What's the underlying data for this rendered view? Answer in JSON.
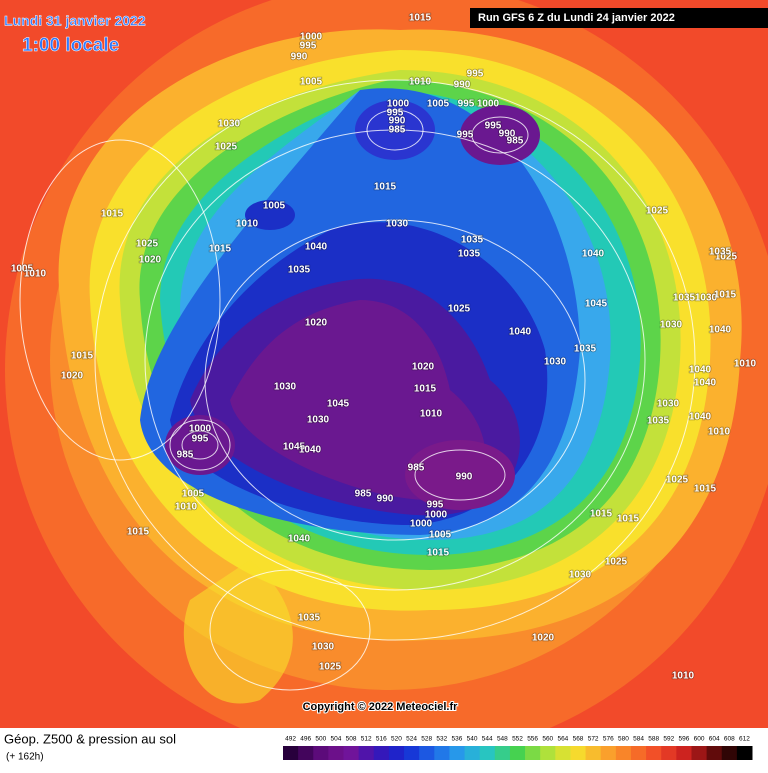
{
  "header": {
    "date": "Lundi 31 janvier 2022",
    "time": "1:00 locale",
    "run": "Run GFS 6 Z du Lundi 24 janvier 2022"
  },
  "map": {
    "isobar_labels": [
      1015,
      1000,
      995,
      990,
      1005,
      1010,
      995,
      990,
      1005,
      995,
      1000,
      1000,
      995,
      990,
      985,
      995,
      990,
      985,
      995,
      1030,
      1025,
      1015,
      1005,
      1010,
      1015,
      1025,
      1020,
      1015,
      1040,
      1030,
      1035,
      1035,
      1040,
      1025,
      1035,
      1005,
      1010,
      1045,
      1025,
      1020,
      1040,
      1030,
      1035,
      1020,
      1015,
      1030,
      1045,
      1010,
      1030,
      1000,
      995,
      985,
      1045,
      1040,
      985,
      990,
      985,
      990,
      995,
      1000,
      1000,
      1005,
      1015,
      1005,
      1010,
      1015,
      1040,
      1015,
      1020,
      1035,
      1030,
      1025,
      1020,
      1010,
      1015,
      1015,
      1025,
      1030,
      1025,
      1015,
      1030,
      1035,
      1040,
      1010,
      1030,
      1035,
      1030,
      1040,
      1040,
      1040,
      1010,
      1015,
      1025,
      1035
    ],
    "copyright": "Copyright © 2022 Meteociel.fr"
  },
  "footer": {
    "title": "Géop. Z500 & pression au sol",
    "subtitle": "(+ 162h)",
    "color_scale": [
      492,
      496,
      500,
      504,
      508,
      512,
      516,
      520,
      524,
      528,
      532,
      536,
      540,
      544,
      548,
      552,
      556,
      560,
      564,
      568,
      572,
      576,
      580,
      584,
      588,
      592,
      596,
      600,
      604,
      608,
      612
    ]
  }
}
